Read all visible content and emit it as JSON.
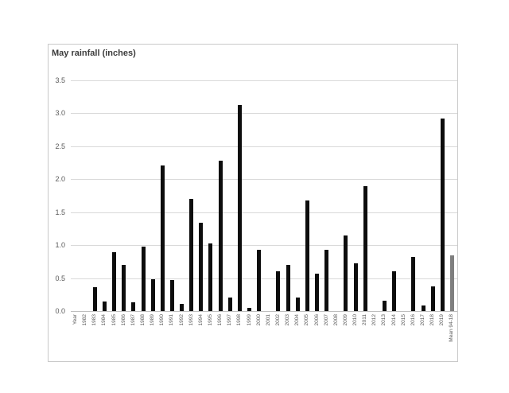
{
  "chart_data": {
    "type": "bar",
    "title": "May rainfall (inches)",
    "xlabel": "",
    "ylabel": "",
    "ylim": [
      0,
      3.5
    ],
    "ytick_step": 0.5,
    "yticks": [
      "0.0",
      "0.5",
      "1.0",
      "1.5",
      "2.0",
      "2.5",
      "3.0",
      "3.5"
    ],
    "grid": true,
    "legend": false,
    "categories": [
      "Year",
      "1982",
      "1983",
      "1984",
      "1985",
      "1986",
      "1987",
      "1988",
      "1989",
      "1990",
      "1991",
      "1992",
      "1993",
      "1994",
      "1995",
      "1996",
      "1997",
      "1998",
      "1999",
      "2000",
      "2001",
      "2002",
      "2003",
      "2004",
      "2005",
      "2006",
      "2007",
      "2008",
      "2009",
      "2010",
      "2011",
      "2012",
      "2013",
      "2014",
      "2015",
      "2016",
      "2017",
      "2018",
      "2019",
      "Mean 94-18"
    ],
    "values": [
      null,
      null,
      0.36,
      0.15,
      0.89,
      0.7,
      0.13,
      0.98,
      0.48,
      2.21,
      0.47,
      0.11,
      1.7,
      1.34,
      1.03,
      2.28,
      0.21,
      3.12,
      0.05,
      0.93,
      null,
      0.6,
      0.7,
      0.2,
      1.68,
      0.57,
      0.93,
      null,
      1.15,
      0.72,
      1.9,
      null,
      0.16,
      0.6,
      null,
      0.82,
      0.08,
      0.38,
      2.92,
      0.85
    ],
    "colors": {
      "bar": "#0d0d0d",
      "last_bar": "#7f7f7f",
      "gridline": "#d9d9d9",
      "axis_line": "#bfbfbf",
      "tick_text": "#595959",
      "title_text": "#3b3b3b",
      "frame_border": "#c9c9c9",
      "background": "#ffffff"
    }
  }
}
